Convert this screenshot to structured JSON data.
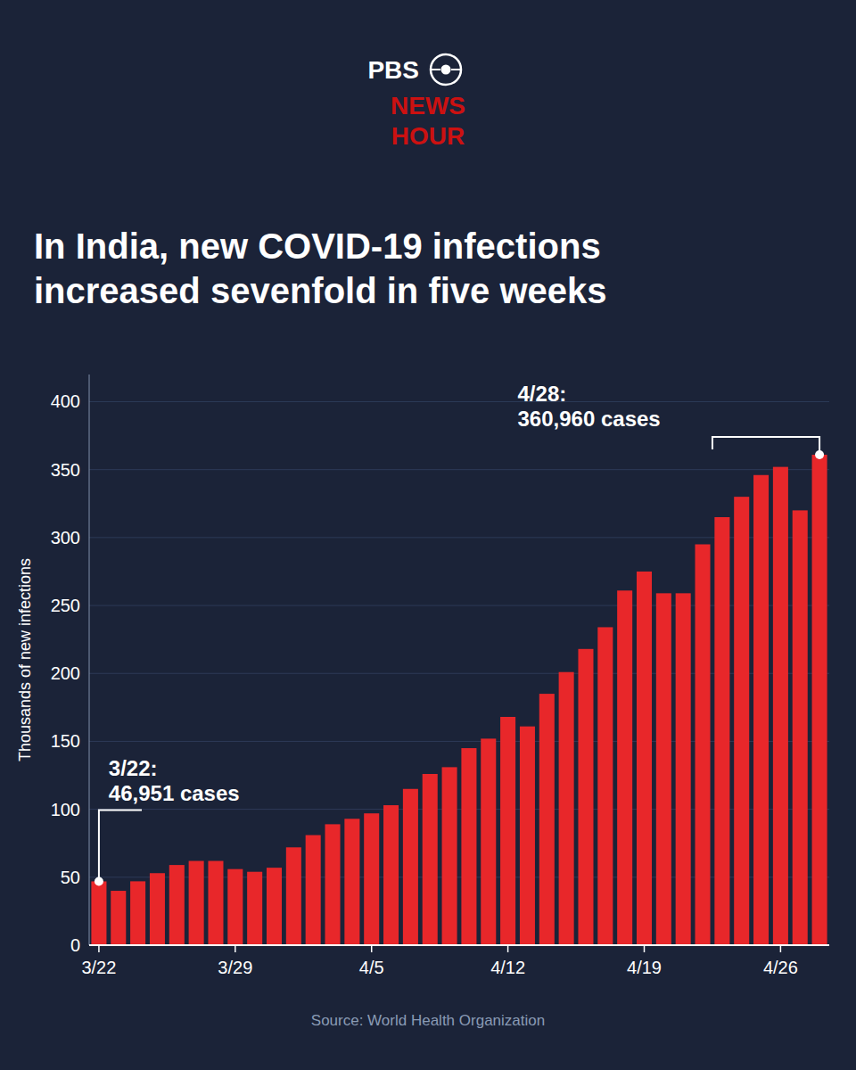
{
  "chart_data": {
    "type": "bar",
    "title": [
      "In India, new COVID-19 infections",
      "increased sevenfold in five weeks"
    ],
    "y_label": "Thousands of new infections",
    "source": "Source: World Health Organization",
    "logo": {
      "text": [
        "PBS",
        "NEWS",
        "HOUR"
      ],
      "color": "#cc1111"
    },
    "categories": [
      "3/22",
      null,
      null,
      null,
      null,
      null,
      null,
      "3/29",
      null,
      null,
      null,
      null,
      null,
      null,
      "4/5",
      null,
      null,
      null,
      null,
      null,
      null,
      "4/12",
      null,
      null,
      null,
      null,
      null,
      null,
      "4/19",
      null,
      null,
      null,
      null,
      null,
      null,
      "4/26",
      null,
      null
    ],
    "values": [
      46.951,
      40.0,
      47.0,
      53.0,
      59.0,
      62.0,
      62.0,
      56.0,
      54.0,
      57.0,
      72.0,
      81.0,
      89.0,
      93.0,
      97.0,
      103.0,
      115.0,
      126.0,
      131.0,
      145.0,
      152.0,
      168.0,
      161.0,
      185.0,
      201.0,
      218.0,
      234.0,
      261.0,
      275.0,
      259.0,
      259.0,
      295.0,
      315.0,
      330.0,
      346.0,
      352.0,
      320.0,
      360.96
    ],
    "color": "#e8272a",
    "ylim": [
      0,
      420
    ],
    "yticks": [
      0,
      50,
      100,
      150,
      200,
      250,
      300,
      350,
      400
    ],
    "grid": true,
    "annotations": [
      {
        "text": [
          "3/22:",
          "46,951 cases"
        ],
        "index": 0
      },
      {
        "text": [
          "4/28:",
          "360,960 cases"
        ],
        "index": 37
      }
    ]
  }
}
